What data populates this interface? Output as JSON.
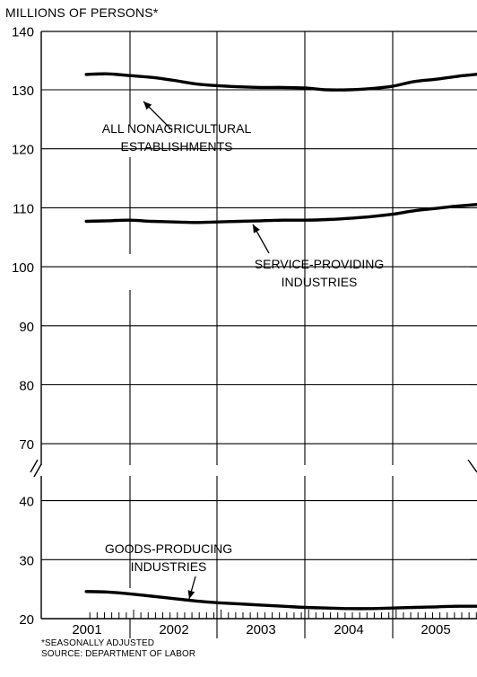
{
  "chart_data": {
    "type": "line",
    "unit_label": "MILLIONS OF PERSONS*",
    "y_axis": {
      "upper_ticks": [
        70,
        80,
        90,
        100,
        110,
        120,
        130,
        140
      ],
      "lower_ticks": [
        20,
        30,
        40
      ],
      "break_between": [
        40,
        70
      ]
    },
    "x_axis": {
      "type": "date",
      "range": [
        "2000-07",
        "2005-12"
      ],
      "year_labels": [
        "2001",
        "2002",
        "2003",
        "2004",
        "2005"
      ],
      "minor_ticks": "monthly"
    },
    "grid": true,
    "series": [
      {
        "name": "ALL NONAGRICULTURAL ESTABLISHMENTS",
        "x": [
          "2000-07",
          "2000-10",
          "2001-01",
          "2001-04",
          "2001-07",
          "2001-10",
          "2002-01",
          "2002-04",
          "2002-07",
          "2002-10",
          "2003-01",
          "2003-04",
          "2003-07",
          "2003-10",
          "2004-01",
          "2004-04",
          "2004-07",
          "2004-10",
          "2005-01",
          "2005-04",
          "2005-07",
          "2005-10"
        ],
        "values": [
          132.6,
          132.7,
          132.4,
          132.1,
          131.6,
          131.0,
          130.7,
          130.5,
          130.4,
          130.4,
          130.3,
          130.0,
          130.0,
          130.2,
          130.6,
          131.4,
          131.8,
          132.3,
          132.7,
          133.3,
          133.8,
          134.2
        ]
      },
      {
        "name": "SERVICE-PROVIDING INDUSTRIES",
        "x": [
          "2000-07",
          "2000-10",
          "2001-01",
          "2001-04",
          "2001-07",
          "2001-10",
          "2002-01",
          "2002-04",
          "2002-07",
          "2002-10",
          "2003-01",
          "2003-04",
          "2003-07",
          "2003-10",
          "2004-01",
          "2004-04",
          "2004-07",
          "2004-10",
          "2005-01",
          "2005-04",
          "2005-07",
          "2005-10"
        ],
        "values": [
          107.7,
          107.8,
          107.9,
          107.7,
          107.6,
          107.5,
          107.6,
          107.7,
          107.8,
          107.9,
          107.9,
          108.0,
          108.2,
          108.5,
          108.9,
          109.5,
          109.9,
          110.3,
          110.6,
          111.0,
          111.5,
          111.9
        ]
      },
      {
        "name": "GOODS-PRODUCING INDUSTRIES",
        "x": [
          "2000-07",
          "2000-10",
          "2001-01",
          "2001-04",
          "2001-07",
          "2001-10",
          "2002-01",
          "2002-04",
          "2002-07",
          "2002-10",
          "2003-01",
          "2003-04",
          "2003-07",
          "2003-10",
          "2004-01",
          "2004-04",
          "2004-07",
          "2004-10",
          "2005-01",
          "2005-04",
          "2005-07",
          "2005-10"
        ],
        "values": [
          24.6,
          24.5,
          24.2,
          23.8,
          23.4,
          23.0,
          22.7,
          22.5,
          22.3,
          22.1,
          21.9,
          21.8,
          21.7,
          21.7,
          21.8,
          21.9,
          22.0,
          22.1,
          22.1,
          22.2,
          22.2,
          22.2
        ]
      }
    ],
    "annotations": [
      {
        "lines": [
          "ALL NONAGRICULTURAL",
          "ESTABLISHMENTS"
        ]
      },
      {
        "lines": [
          "SERVICE-PROVIDING",
          "INDUSTRIES"
        ]
      },
      {
        "lines": [
          "GOODS-PRODUCING",
          "INDUSTRIES"
        ]
      }
    ]
  },
  "footnotes": {
    "seasonal": "*SEASONALLY ADJUSTED",
    "source": "SOURCE: DEPARTMENT OF LABOR"
  }
}
